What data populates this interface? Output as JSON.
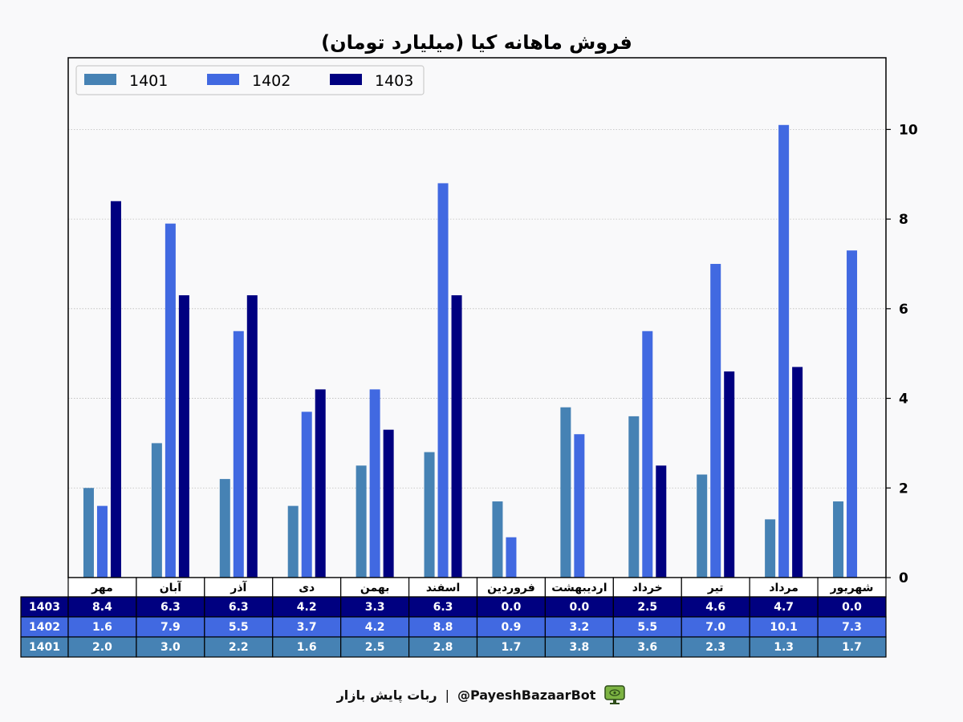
{
  "chart_data": {
    "type": "bar",
    "title": "فروش ماهانه کیا (میلیارد تومان)",
    "xlabel": "",
    "ylabel": "",
    "ylim": [
      0,
      11.6
    ],
    "yticks": [
      0,
      2,
      4,
      6,
      8,
      10
    ],
    "grid": true,
    "legend_position": "top-left",
    "categories": [
      "مهر",
      "آبان",
      "آذر",
      "دی",
      "بهمن",
      "اسفند",
      "فروردین",
      "اردیبهشت",
      "خرداد",
      "تیر",
      "مرداد",
      "شهریور"
    ],
    "series": [
      {
        "name": "1401",
        "color": "#4682b4",
        "values": [
          2.0,
          3.0,
          2.2,
          1.6,
          2.5,
          2.8,
          1.7,
          3.8,
          3.6,
          2.3,
          1.3,
          1.7
        ]
      },
      {
        "name": "1402",
        "color": "#4169e1",
        "values": [
          1.6,
          7.9,
          5.5,
          3.7,
          4.2,
          8.8,
          0.9,
          3.2,
          5.5,
          7.0,
          10.1,
          7.3
        ]
      },
      {
        "name": "1403",
        "color": "#000080",
        "values": [
          8.4,
          6.3,
          6.3,
          4.2,
          3.3,
          6.3,
          0.0,
          0.0,
          2.5,
          4.6,
          4.7,
          0.0
        ]
      }
    ],
    "table": {
      "row_order": [
        "1403",
        "1402",
        "1401"
      ]
    }
  },
  "footer": {
    "bot_name": "ربات پایش بازار",
    "separator": "|",
    "handle": "@PayeshBazaarBot",
    "icon": "monitor-eye-icon"
  }
}
